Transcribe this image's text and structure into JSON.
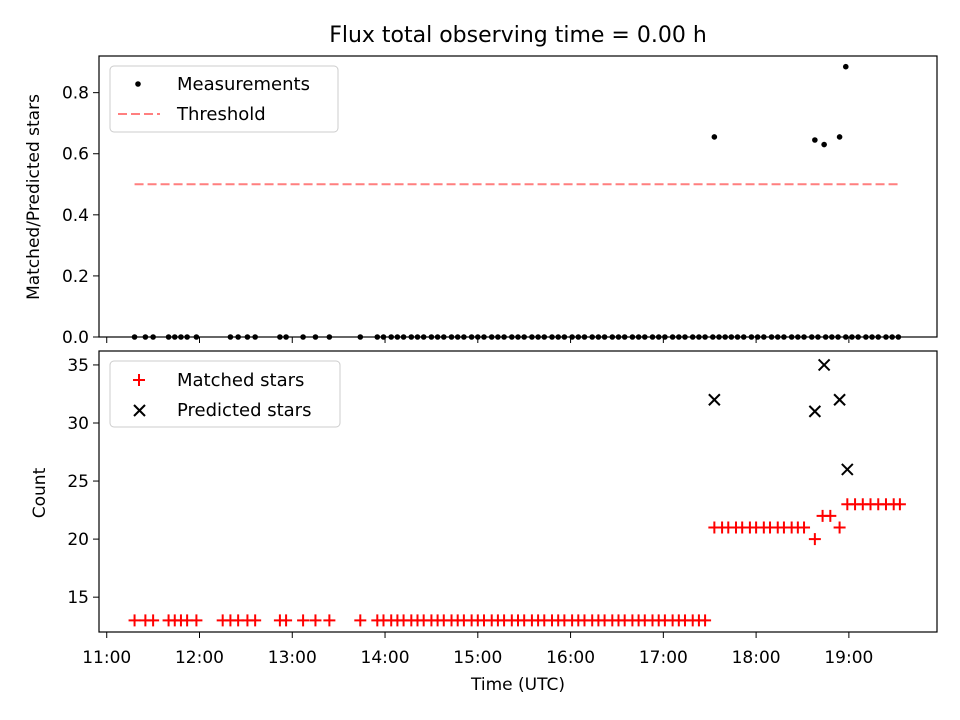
{
  "chart_data": [
    {
      "type": "scatter",
      "title": "Flux total observing time = 0.00 h",
      "xlabel": "",
      "ylabel": "Matched/Predicted stars",
      "xlim": [
        "10:55",
        "19:57"
      ],
      "ylim": [
        0,
        0.92
      ],
      "yticks": [
        0.0,
        0.2,
        0.4,
        0.6,
        0.8
      ],
      "ytick_labels": [
        "0.0",
        "0.2",
        "0.4",
        "0.6",
        "0.8"
      ],
      "grid": false,
      "legend_position": "upper-left",
      "legend": [
        "Measurements",
        "Threshold"
      ],
      "colors": {
        "measurements": "#000000",
        "threshold": "#ff7f7f"
      },
      "series": [
        {
          "name": "Measurements",
          "x": [
            "11:18",
            "11:25",
            "11:30",
            "11:40",
            "11:44",
            "11:48",
            "11:52",
            "11:58",
            "12:20",
            "12:25",
            "12:31",
            "12:36",
            "12:52",
            "12:56",
            "13:07",
            "13:15",
            "13:24",
            "13:44",
            "13:55",
            "13:59",
            "14:04",
            "14:08",
            "14:12",
            "14:17",
            "14:21",
            "14:25",
            "14:30",
            "14:34",
            "14:38",
            "14:43",
            "14:47",
            "14:51",
            "14:56",
            "15:00",
            "15:04",
            "15:09",
            "15:13",
            "15:17",
            "15:22",
            "15:26",
            "15:30",
            "15:35",
            "15:39",
            "15:43",
            "15:48",
            "15:52",
            "15:56",
            "16:01",
            "16:05",
            "16:09",
            "16:14",
            "16:18",
            "16:22",
            "16:27",
            "16:31",
            "16:35",
            "16:40",
            "16:44",
            "16:48",
            "16:53",
            "16:57",
            "17:01",
            "17:06",
            "17:10",
            "17:14",
            "17:19",
            "17:23",
            "17:27",
            "17:32",
            "17:36",
            "17:40",
            "17:44",
            "17:48",
            "17:52",
            "17:57",
            "18:01",
            "18:05",
            "18:10",
            "18:14",
            "18:18",
            "18:23",
            "18:27",
            "18:31",
            "18:36",
            "18:40",
            "18:45",
            "18:49",
            "18:53",
            "18:58",
            "19:02",
            "19:06",
            "19:11",
            "19:15",
            "19:19",
            "19:24",
            "19:28",
            "19:32",
            "17:33",
            "18:38",
            "18:44",
            "18:54",
            "18:58"
          ],
          "y": [
            0,
            0,
            0,
            0,
            0,
            0,
            0,
            0,
            0,
            0,
            0,
            0,
            0,
            0,
            0,
            0,
            0,
            0,
            0,
            0,
            0,
            0,
            0,
            0,
            0,
            0,
            0,
            0,
            0,
            0,
            0,
            0,
            0,
            0,
            0,
            0,
            0,
            0,
            0,
            0,
            0,
            0,
            0,
            0,
            0,
            0,
            0,
            0,
            0,
            0,
            0,
            0,
            0,
            0,
            0,
            0,
            0,
            0,
            0,
            0,
            0,
            0,
            0,
            0,
            0,
            0,
            0,
            0,
            0,
            0,
            0,
            0,
            0,
            0,
            0,
            0,
            0,
            0,
            0,
            0,
            0,
            0,
            0,
            0,
            0,
            0,
            0,
            0,
            0,
            0,
            0,
            0,
            0,
            0,
            0,
            0,
            0,
            0.655,
            0.645,
            0.63,
            0.655,
            0.885
          ]
        },
        {
          "name": "Threshold",
          "x": [
            "11:18",
            "19:32"
          ],
          "y": [
            0.5,
            0.5
          ]
        }
      ]
    },
    {
      "type": "scatter",
      "title": "",
      "xlabel": "Time (UTC)",
      "ylabel": "Count",
      "xlim": [
        "10:55",
        "19:57"
      ],
      "ylim": [
        12,
        36.2
      ],
      "xticks": [
        "11:00",
        "12:00",
        "13:00",
        "14:00",
        "15:00",
        "16:00",
        "17:00",
        "18:00",
        "19:00"
      ],
      "yticks": [
        15,
        20,
        25,
        30,
        35
      ],
      "ytick_labels": [
        "15",
        "20",
        "25",
        "30",
        "35"
      ],
      "grid": false,
      "legend_position": "upper-left",
      "legend": [
        "Matched stars",
        "Predicted stars"
      ],
      "colors": {
        "matched": "#ff0000",
        "predicted": "#000000"
      },
      "series": [
        {
          "name": "Matched stars",
          "x": [
            "11:18",
            "11:25",
            "11:30",
            "11:40",
            "11:44",
            "11:48",
            "11:52",
            "11:58",
            "12:15",
            "12:20",
            "12:25",
            "12:31",
            "12:36",
            "12:52",
            "12:56",
            "13:07",
            "13:15",
            "13:24",
            "13:44",
            "13:55",
            "13:59",
            "14:04",
            "14:08",
            "14:12",
            "14:17",
            "14:21",
            "14:25",
            "14:30",
            "14:34",
            "14:38",
            "14:43",
            "14:47",
            "14:51",
            "14:56",
            "15:00",
            "15:04",
            "15:09",
            "15:13",
            "15:17",
            "15:22",
            "15:26",
            "15:30",
            "15:35",
            "15:39",
            "15:43",
            "15:48",
            "15:52",
            "15:56",
            "16:01",
            "16:05",
            "16:09",
            "16:14",
            "16:18",
            "16:22",
            "16:27",
            "16:31",
            "16:35",
            "16:40",
            "16:44",
            "16:48",
            "16:53",
            "16:57",
            "17:01",
            "17:06",
            "17:10",
            "17:14",
            "17:19",
            "17:23",
            "17:27",
            "17:33",
            "17:38",
            "17:42",
            "17:47",
            "17:51",
            "17:56",
            "18:00",
            "18:05",
            "18:09",
            "18:14",
            "18:18",
            "18:23",
            "18:27",
            "18:31",
            "18:38",
            "18:43",
            "18:48",
            "18:54",
            "18:59",
            "19:04",
            "19:09",
            "19:14",
            "19:19",
            "19:24",
            "19:29",
            "19:33"
          ],
          "y": [
            13,
            13,
            13,
            13,
            13,
            13,
            13,
            13,
            13,
            13,
            13,
            13,
            13,
            13,
            13,
            13,
            13,
            13,
            13,
            13,
            13,
            13,
            13,
            13,
            13,
            13,
            13,
            13,
            13,
            13,
            13,
            13,
            13,
            13,
            13,
            13,
            13,
            13,
            13,
            13,
            13,
            13,
            13,
            13,
            13,
            13,
            13,
            13,
            13,
            13,
            13,
            13,
            13,
            13,
            13,
            13,
            13,
            13,
            13,
            13,
            13,
            13,
            13,
            13,
            13,
            13,
            13,
            13,
            13,
            21,
            21,
            21,
            21,
            21,
            21,
            21,
            21,
            21,
            21,
            21,
            21,
            21,
            21,
            20,
            22,
            22,
            21,
            23,
            23,
            23,
            23,
            23,
            23,
            23,
            23
          ]
        },
        {
          "name": "Predicted stars",
          "x": [
            "17:33",
            "18:38",
            "18:44",
            "18:54",
            "18:59"
          ],
          "y": [
            32,
            31,
            35,
            32,
            26
          ]
        }
      ]
    }
  ]
}
